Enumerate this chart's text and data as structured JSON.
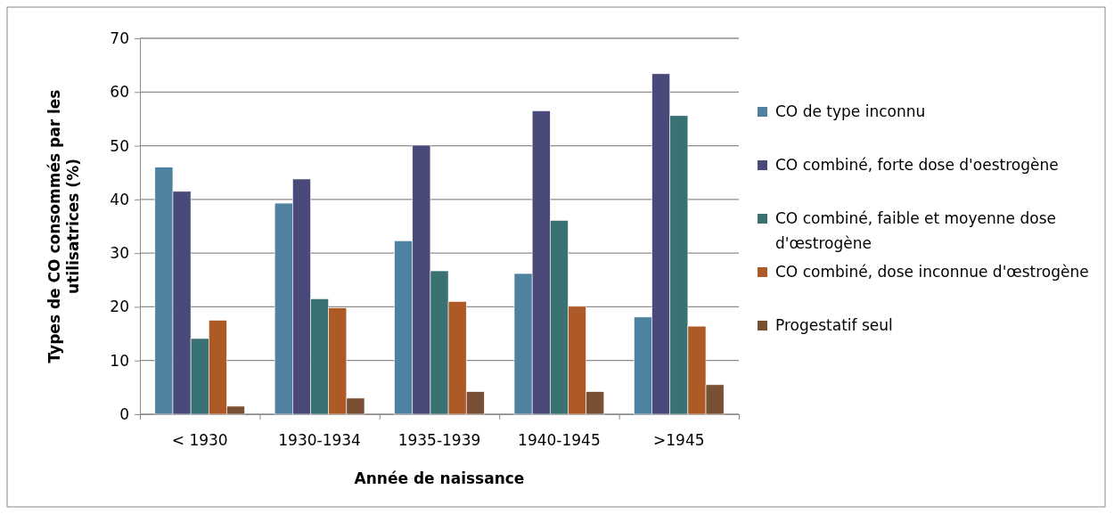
{
  "chart_data": {
    "type": "bar",
    "xlabel": "Année de naissance",
    "ylabel": "Types de CO consommés par les utilisatrices (%)",
    "categories": [
      "< 1930",
      "1930-1934",
      "1935-1939",
      "1940-1945",
      ">1945"
    ],
    "series": [
      {
        "name": "CO de type inconnu",
        "color": "#4f81a0",
        "values": [
          46,
          39.3,
          32.3,
          26.2,
          18.1
        ]
      },
      {
        "name": "CO combiné, forte dose d'oestrogène",
        "color": "#4a4a7a",
        "values": [
          41.5,
          43.8,
          50.1,
          56.5,
          63.4
        ]
      },
      {
        "name": "CO combiné, faible et moyenne dose d'œstrogène",
        "color": "#3a7173",
        "values": [
          14.1,
          21.5,
          26.7,
          36.1,
          55.6
        ]
      },
      {
        "name": "CO combiné, dose inconnue d'œstrogène",
        "color": "#ad5a27",
        "values": [
          17.5,
          19.8,
          21,
          20.1,
          16.4
        ]
      },
      {
        "name": "Progestatif seul",
        "color": "#7a5034",
        "values": [
          1.5,
          3,
          4.2,
          4.2,
          5.5
        ]
      }
    ],
    "ylim": [
      0,
      70
    ],
    "yticks": [
      0,
      10,
      20,
      30,
      40,
      50,
      60,
      70
    ],
    "grid": "y",
    "legend": "right"
  }
}
